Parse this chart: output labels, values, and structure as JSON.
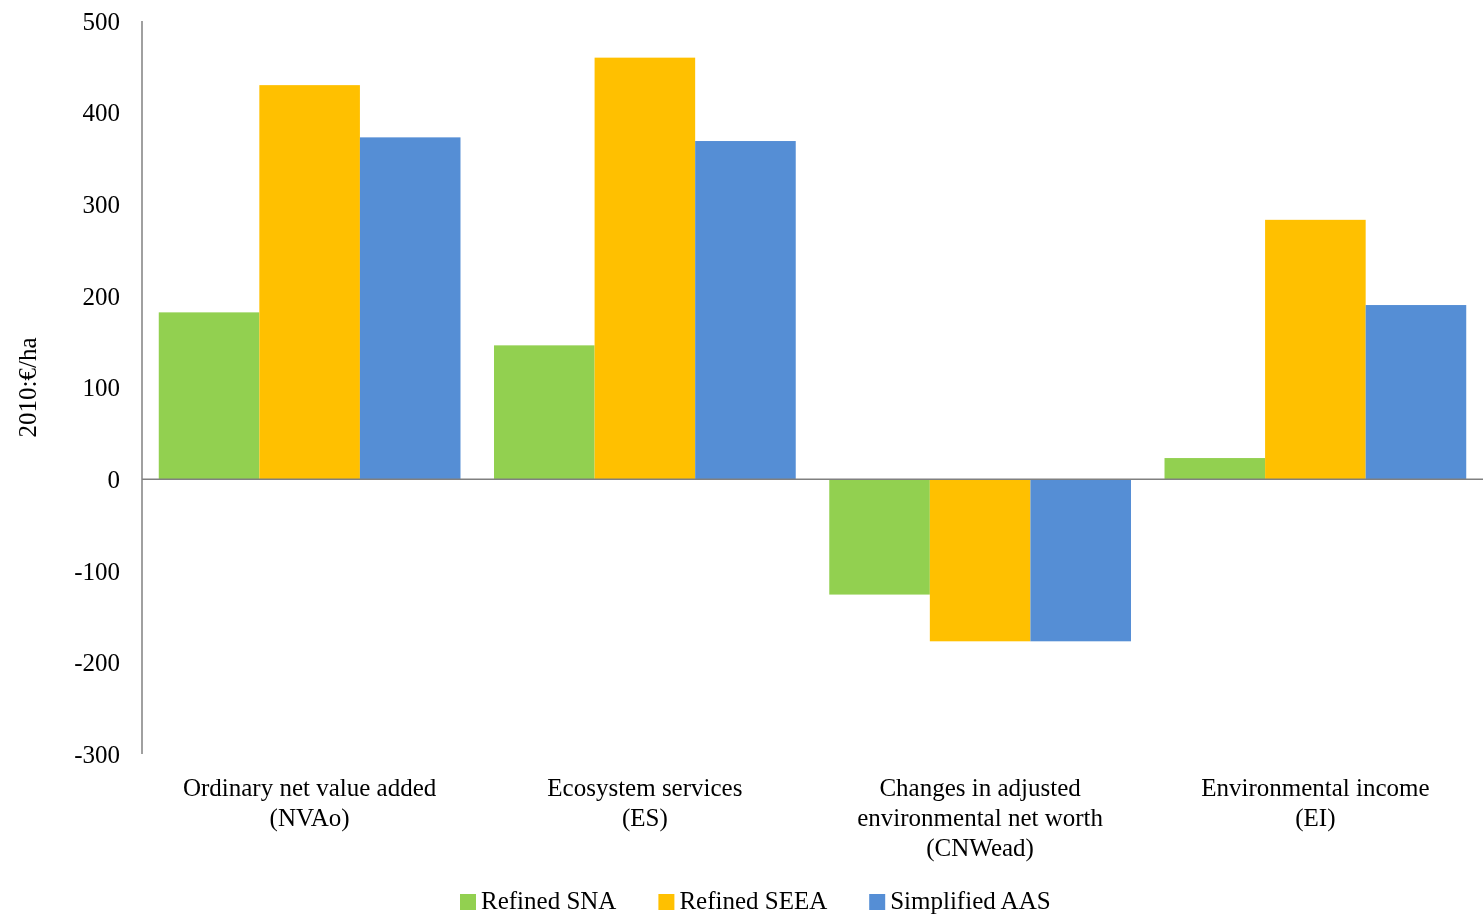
{
  "chart_data": {
    "type": "bar",
    "ylabel": "2010:€/ha",
    "categories": [
      "Ordinary net value added (NVAo)",
      "Ecosystem services (ES)",
      "Changes in adjusted environmental net worth (CNWead)",
      "Environmental income (EI)"
    ],
    "series": [
      {
        "name": "Refined SNA",
        "color": "#92d050",
        "values": [
          182,
          146,
          -126,
          23
        ]
      },
      {
        "name": "Refined SEEA",
        "color": "#ffc000",
        "values": [
          430,
          460,
          -177,
          283
        ]
      },
      {
        "name": "Simplified AAS",
        "color": "#558ed5",
        "values": [
          373,
          369,
          -177,
          190
        ]
      }
    ],
    "ylim": [
      -300,
      500
    ],
    "yticks": [
      -300,
      -200,
      -100,
      0,
      100,
      200,
      300,
      400,
      500
    ],
    "legend": "bottom"
  }
}
